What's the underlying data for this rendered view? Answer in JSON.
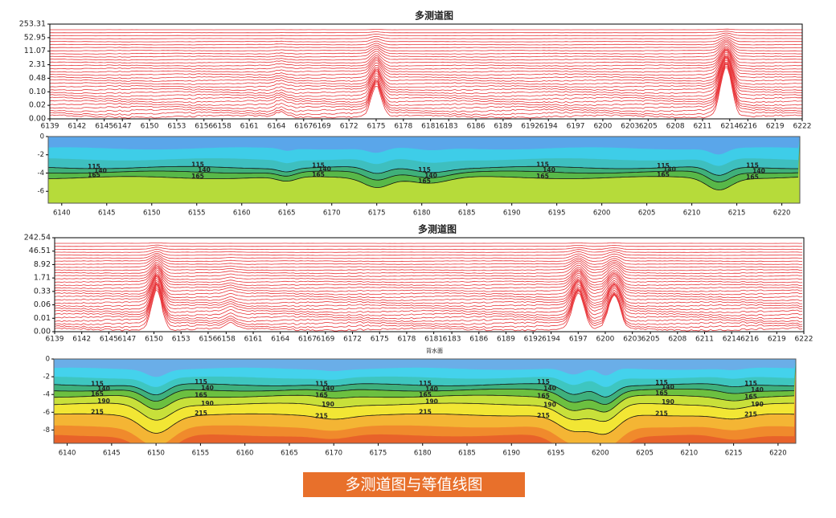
{
  "chart_data": [
    {
      "type": "multitrace",
      "title": "多测道图",
      "color": "#e8363a",
      "xlim": [
        6139,
        6222
      ],
      "xticks": [
        6139,
        6142,
        6145,
        6147,
        6150,
        6153,
        6156,
        6158,
        6161,
        6164,
        6167,
        6169,
        6172,
        6175,
        6178,
        6181,
        6183,
        6186,
        6189,
        6192,
        6194,
        6197,
        6200,
        6203,
        6205,
        6208,
        6211,
        6214,
        6216,
        6219,
        6222
      ],
      "yticks": [
        253.31,
        52.95,
        11.07,
        2.31,
        0.48,
        {
          "value": 0.1,
          "label": "0.10"
        },
        0.02,
        {
          "value": 0,
          "label": "0.00"
        }
      ]
    },
    {
      "type": "contour",
      "xlim": [
        6138.5,
        6222
      ],
      "ylim": [
        -7.3,
        0
      ],
      "xticks": [
        6140,
        6145,
        6150,
        6155,
        6160,
        6165,
        6170,
        6175,
        6180,
        6185,
        6190,
        6195,
        6200,
        6205,
        6210,
        6215,
        6220
      ],
      "yticks": [
        0,
        -2,
        -4,
        -6
      ],
      "levels": [
        115,
        140,
        165
      ]
    },
    {
      "type": "multitrace",
      "title": "多测道图",
      "color": "#e8363a",
      "xlim": [
        6139,
        6222
      ],
      "xticks": [
        6139,
        6142,
        6145,
        6147,
        6150,
        6153,
        6156,
        6158,
        6161,
        6164,
        6167,
        6169,
        6172,
        6175,
        6178,
        6181,
        6183,
        6186,
        6189,
        6192,
        6194,
        6197,
        6200,
        6203,
        6205,
        6208,
        6211,
        6214,
        6216,
        6219,
        6222
      ],
      "yticks": [
        242.54,
        46.51,
        8.92,
        1.71,
        0.33,
        0.06,
        0.01,
        {
          "value": 0,
          "label": "0.00"
        }
      ]
    },
    {
      "type": "contour",
      "subtitle": "背水面",
      "xlim": [
        6138.5,
        6222
      ],
      "ylim": [
        -9.5,
        0
      ],
      "xticks": [
        6140,
        6145,
        6150,
        6155,
        6160,
        6165,
        6170,
        6175,
        6180,
        6185,
        6190,
        6195,
        6200,
        6205,
        6210,
        6215,
        6220
      ],
      "yticks": [
        0,
        -2,
        -4,
        -6,
        -8
      ],
      "levels": [
        115,
        140,
        165,
        190,
        215
      ]
    }
  ],
  "caption": "多测道图与等值线图"
}
